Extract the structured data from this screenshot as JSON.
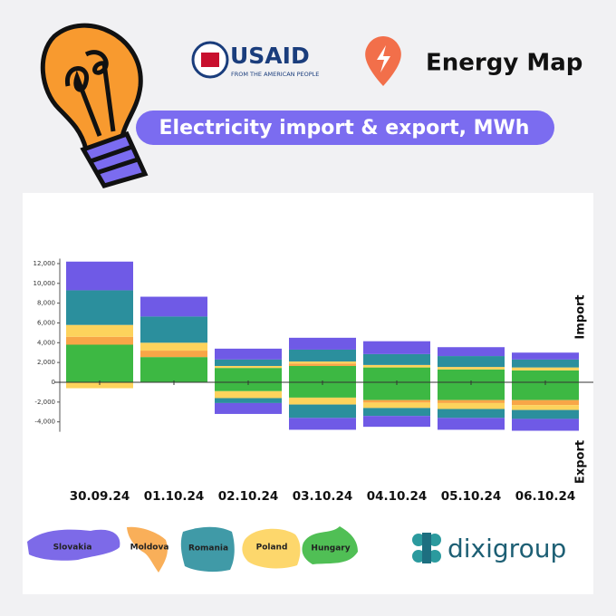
{
  "header": {
    "usaid": "USAID",
    "usaid_tagline": "FROM THE AMERICAN PEOPLE",
    "brand": "Energy Map",
    "title": "Electricity import & export, MWh"
  },
  "footer": {
    "logo": "dixigroup"
  },
  "chart_data": {
    "type": "bar",
    "stacked": true,
    "y_label_top": "Import",
    "y_label_bottom": "Export",
    "categories": [
      "30.09.24",
      "01.10.24",
      "02.10.24",
      "03.10.24",
      "04.10.24",
      "05.10.24",
      "06.10.24"
    ],
    "series": [
      {
        "name": "Hungary",
        "color": "#3db843",
        "import": [
          3800,
          2550,
          1450,
          1650,
          1500,
          1300,
          1200
        ],
        "export": [
          0,
          0,
          -900,
          -1550,
          -1800,
          -1800,
          -1800
        ]
      },
      {
        "name": "Moldova",
        "color": "#f8a647",
        "import": [
          800,
          650,
          0,
          250,
          0,
          0,
          0
        ],
        "export": [
          0,
          0,
          0,
          0,
          -250,
          -300,
          -500
        ]
      },
      {
        "name": "Poland",
        "color": "#fdd35c",
        "import": [
          1200,
          800,
          200,
          200,
          250,
          250,
          300
        ],
        "export": [
          -600,
          0,
          -700,
          -700,
          -550,
          -600,
          -500
        ]
      },
      {
        "name": "Romania",
        "color": "#2b8f9d",
        "import": [
          3500,
          2650,
          650,
          1200,
          1100,
          1100,
          800
        ],
        "export": [
          0,
          0,
          -500,
          -1350,
          -800,
          -900,
          -900
        ]
      },
      {
        "name": "Slovakia",
        "color": "#6f5ae6",
        "import": [
          2900,
          2000,
          1100,
          1200,
          1300,
          900,
          700
        ],
        "export": [
          0,
          0,
          -1100,
          -1200,
          -1100,
          -1200,
          -1200
        ]
      }
    ],
    "ylim": [
      -5000,
      12500
    ],
    "yticks": [
      {
        "value": -4000,
        "label": "-4,000"
      },
      {
        "value": -2000,
        "label": "-2,000"
      },
      0,
      {
        "value": 2000,
        "label": "2,000"
      },
      {
        "value": 4000,
        "label": "4,000"
      },
      {
        "value": 6000,
        "label": "6,000"
      },
      {
        "value": 8000,
        "label": "8,000"
      },
      {
        "value": 10000,
        "label": "10,000"
      },
      {
        "value": 12000,
        "label": "12,000"
      }
    ],
    "grid": false
  }
}
